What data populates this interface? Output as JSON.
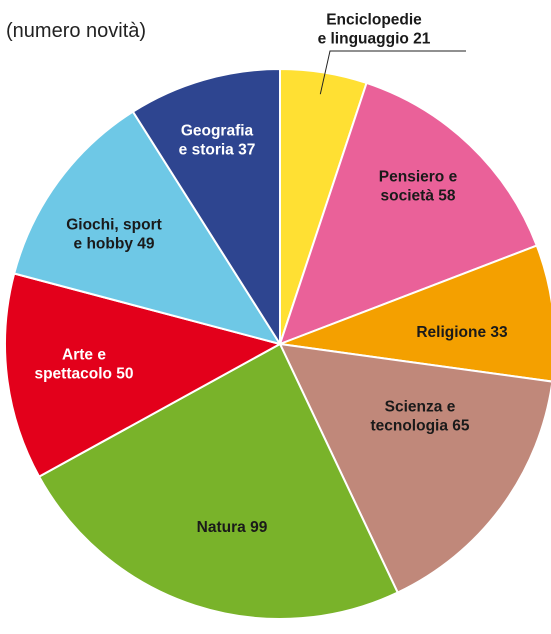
{
  "subtitle": "(numero novità)",
  "chart_data": {
    "type": "pie",
    "start": "top, clockwise",
    "slices": [
      {
        "label": "Enciclopedie e linguaggio",
        "label_lines": [
          "Enciclopedie",
          "e linguaggio 21"
        ],
        "value": 21,
        "color": "#ffe033",
        "text_color": "#1a1a1a",
        "label_outside": true
      },
      {
        "label": "Pensiero e società",
        "label_lines": [
          "Pensiero e",
          "società 58"
        ],
        "value": 58,
        "color": "#ea6199",
        "text_color": "#1a1a1a"
      },
      {
        "label": "Religione",
        "label_lines": [
          "Religione 33"
        ],
        "value": 33,
        "color": "#f4a000",
        "text_color": "#1a1a1a"
      },
      {
        "label": "Scienza e tecnologia",
        "label_lines": [
          "Scienza e",
          "tecnologia 65"
        ],
        "value": 65,
        "color": "#c0887a",
        "text_color": "#1a1a1a"
      },
      {
        "label": "Natura",
        "label_lines": [
          "Natura 99"
        ],
        "value": 99,
        "color": "#79b32a",
        "text_color": "#1a1a1a"
      },
      {
        "label": "Arte e spettacolo",
        "label_lines": [
          "Arte e",
          "spettacolo 50"
        ],
        "value": 50,
        "color": "#e3001b",
        "text_color": "#ffffff"
      },
      {
        "label": "Giochi, sport e hobby",
        "label_lines": [
          "Giochi, sport",
          "e hobby 49"
        ],
        "value": 49,
        "color": "#6ec8e6",
        "text_color": "#1a1a1a"
      },
      {
        "label": "Geografia e storia",
        "label_lines": [
          "Geografia",
          "e storia 37"
        ],
        "value": 37,
        "color": "#2e4590",
        "text_color": "#ffffff"
      }
    ]
  }
}
